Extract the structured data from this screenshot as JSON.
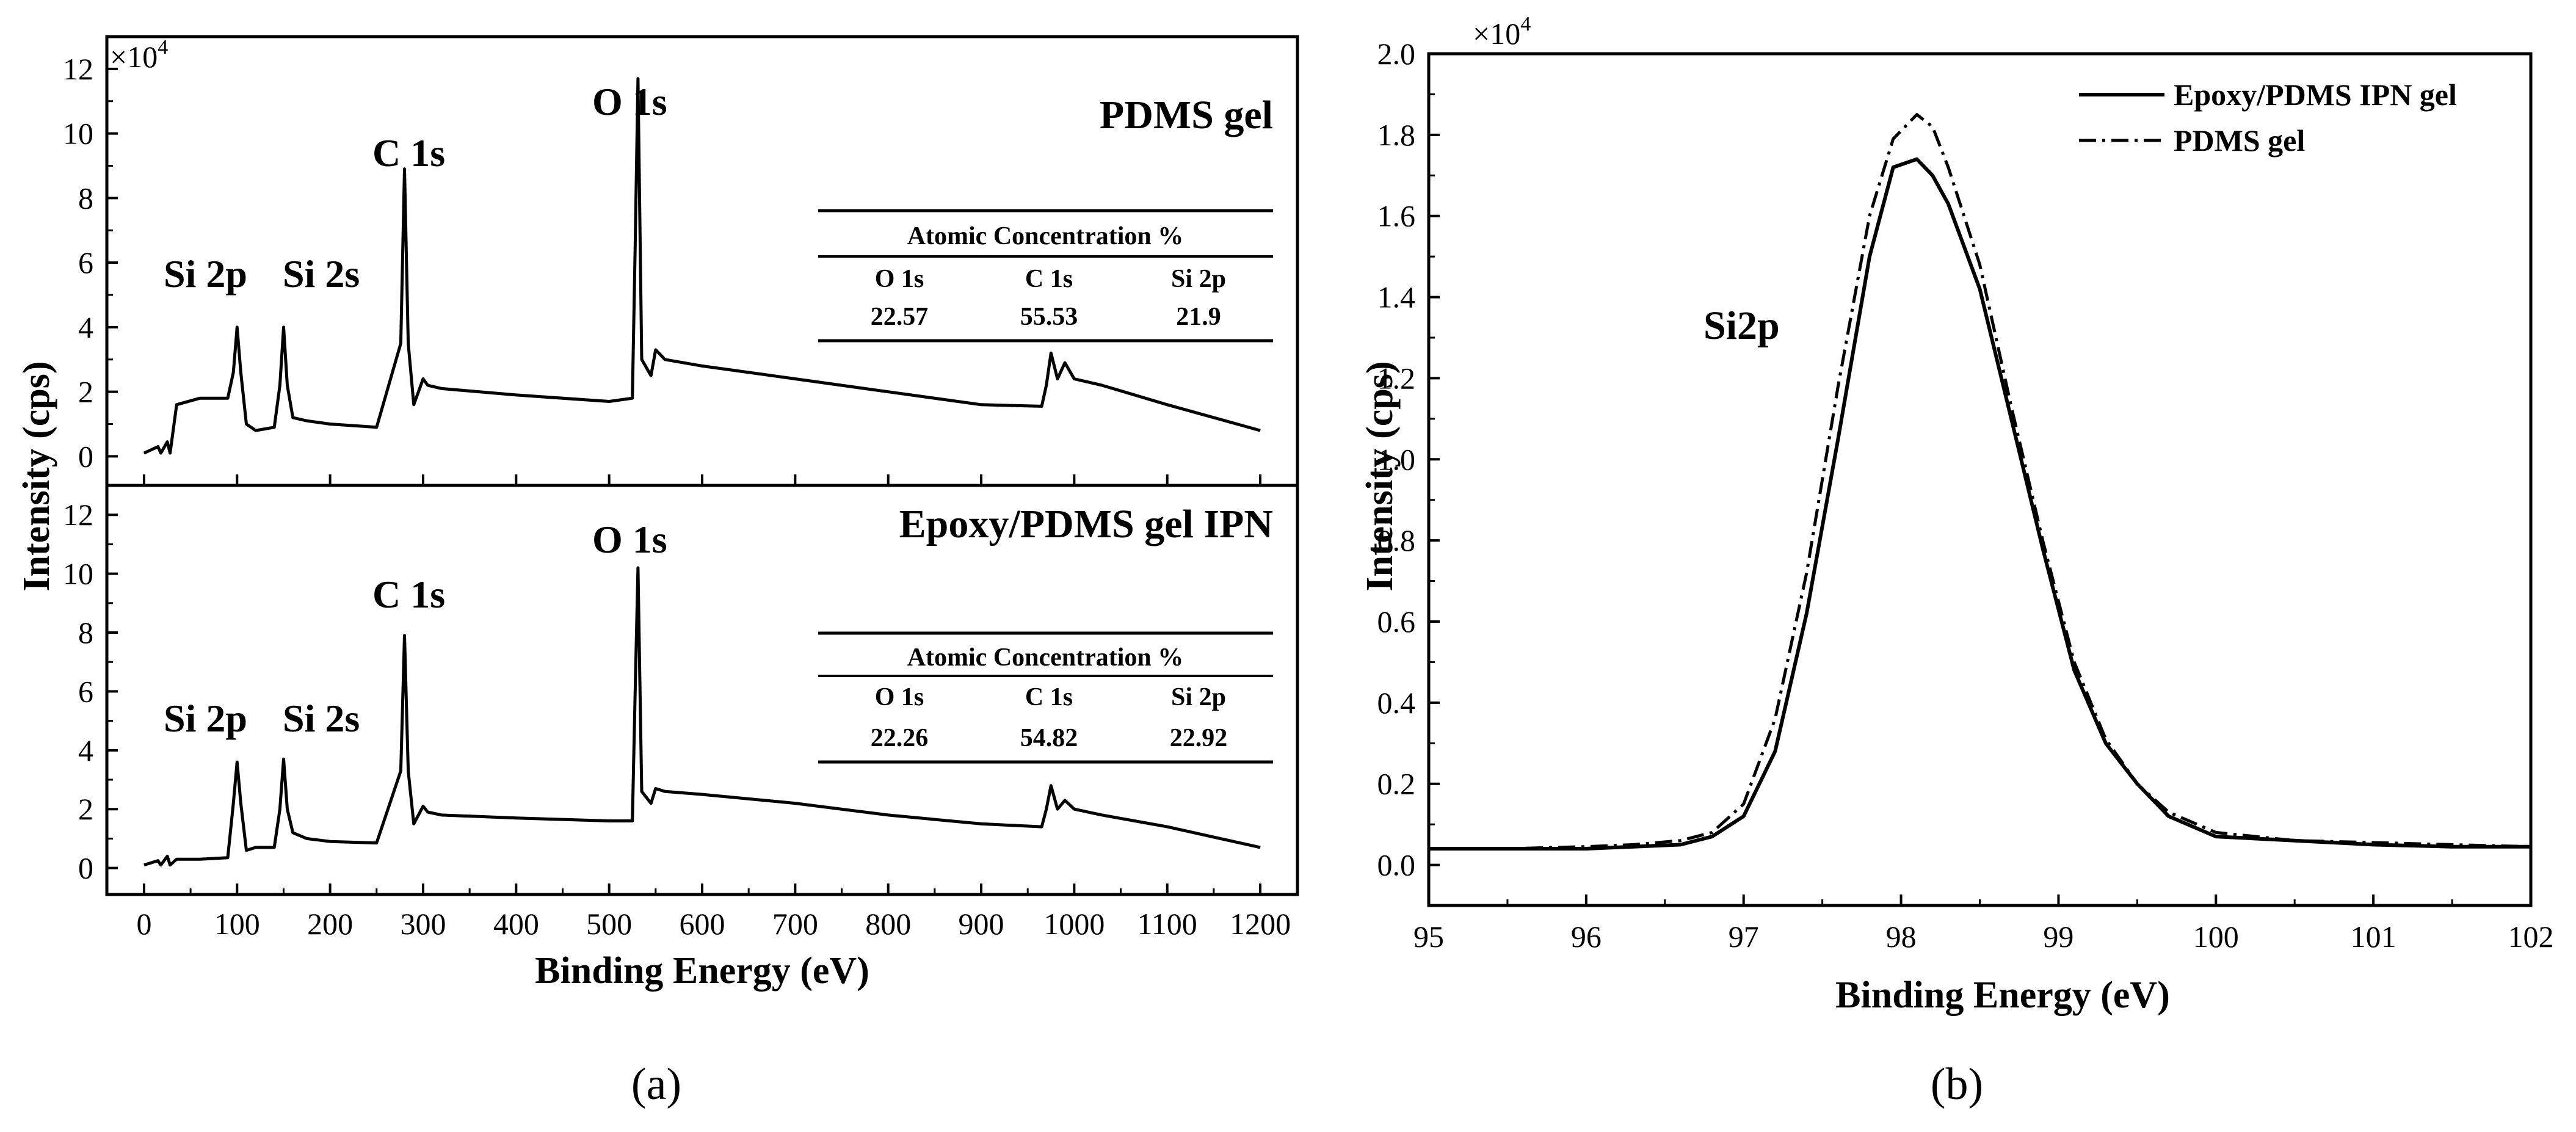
{
  "chart_data": [
    {
      "id": "a",
      "type": "line",
      "caption": "(a)",
      "multiplier": "×10",
      "multiplier_exp": "4",
      "xlabel": "Binding Energy (eV)",
      "ylabel": "Intensity (cps)",
      "xlim": [
        -40,
        1240
      ],
      "xticks": [
        0,
        100,
        200,
        300,
        400,
        500,
        600,
        700,
        800,
        900,
        1000,
        1100,
        1200
      ],
      "xtick_labels": [
        "0",
        "100",
        "200",
        "300",
        "400",
        "500",
        "600",
        "700",
        "800",
        "900",
        "1000",
        "1100",
        "1200"
      ],
      "panels": [
        {
          "name": "PDMS gel",
          "title": "PDMS gel",
          "ylim": [
            -0.9,
            13
          ],
          "yticks": [
            0,
            2,
            4,
            6,
            8,
            10,
            12
          ],
          "ytick_labels": [
            "0",
            "2",
            "4",
            "6",
            "8",
            "10",
            "12"
          ],
          "peak_labels": [
            "Si 2p",
            "Si 2s",
            "C 1s",
            "O 1s"
          ],
          "table": {
            "title": "Atomic Concentration %",
            "headers": [
              "O 1s",
              "C 1s",
              "Si 2p"
            ],
            "values": [
              "22.57",
              "55.53",
              "21.9"
            ]
          },
          "x": [
            0,
            15,
            18,
            25,
            28,
            35,
            60,
            90,
            96,
            100,
            104,
            110,
            120,
            140,
            146,
            150,
            154,
            160,
            175,
            200,
            250,
            276,
            280,
            284,
            290,
            300,
            305,
            320,
            400,
            500,
            525,
            528,
            531,
            535,
            545,
            550,
            560,
            600,
            700,
            800,
            900,
            965,
            970,
            975,
            982,
            990,
            1000,
            1030,
            1100,
            1200
          ],
          "y": [
            0.1,
            0.3,
            0.1,
            0.45,
            0.1,
            1.6,
            1.8,
            1.8,
            2.6,
            4.0,
            2.6,
            1.0,
            0.8,
            0.9,
            2.2,
            4.0,
            2.2,
            1.2,
            1.1,
            1.0,
            0.9,
            3.5,
            8.9,
            3.5,
            1.6,
            2.4,
            2.2,
            2.1,
            1.9,
            1.7,
            1.8,
            6.5,
            11.7,
            3.0,
            2.5,
            3.3,
            3.0,
            2.8,
            2.4,
            2.0,
            1.6,
            1.55,
            2.2,
            3.2,
            2.4,
            2.9,
            2.4,
            2.2,
            1.6,
            0.8
          ]
        },
        {
          "name": "Epoxy/PDMS gel IPN",
          "title": "Epoxy/PDMS gel IPN",
          "ylim": [
            -0.9,
            13
          ],
          "yticks": [
            0,
            2,
            4,
            6,
            8,
            10,
            12
          ],
          "ytick_labels": [
            "0",
            "2",
            "4",
            "6",
            "8",
            "10",
            "12"
          ],
          "peak_labels": [
            "Si 2p",
            "Si 2s",
            "C 1s",
            "O 1s"
          ],
          "table": {
            "title": "Atomic Concentration %",
            "headers": [
              "O 1s",
              "C 1s",
              "Si 2p"
            ],
            "values": [
              "22.26",
              "54.82",
              "22.92"
            ]
          },
          "x": [
            0,
            15,
            18,
            25,
            28,
            35,
            60,
            90,
            96,
            100,
            104,
            110,
            120,
            140,
            146,
            150,
            154,
            160,
            175,
            200,
            250,
            276,
            280,
            284,
            290,
            300,
            305,
            320,
            400,
            500,
            525,
            528,
            531,
            535,
            545,
            550,
            560,
            600,
            700,
            800,
            900,
            965,
            970,
            975,
            982,
            990,
            1000,
            1030,
            1100,
            1200
          ],
          "y": [
            0.1,
            0.25,
            0.1,
            0.4,
            0.1,
            0.3,
            0.3,
            0.35,
            2.2,
            3.6,
            2.2,
            0.6,
            0.7,
            0.7,
            2.0,
            3.7,
            2.0,
            1.2,
            1.0,
            0.9,
            0.85,
            3.3,
            7.9,
            3.3,
            1.5,
            2.1,
            1.9,
            1.8,
            1.7,
            1.6,
            1.6,
            6.0,
            10.2,
            2.6,
            2.2,
            2.7,
            2.6,
            2.5,
            2.2,
            1.8,
            1.5,
            1.4,
            2.0,
            2.8,
            2.0,
            2.3,
            2.0,
            1.8,
            1.4,
            0.7
          ]
        }
      ]
    },
    {
      "id": "b",
      "type": "line",
      "caption": "(b)",
      "multiplier": "×10",
      "multiplier_exp": "4",
      "xlabel": "Binding Energy (eV)",
      "ylabel": "Intensity (cps)",
      "annotation": "Si2p",
      "xlim": [
        95,
        102
      ],
      "ylim": [
        -0.1,
        2.0
      ],
      "xticks": [
        95,
        96,
        97,
        98,
        99,
        100,
        101,
        102
      ],
      "xtick_labels": [
        "95",
        "96",
        "97",
        "98",
        "99",
        "100",
        "101",
        "102"
      ],
      "yticks": [
        0.0,
        0.2,
        0.4,
        0.6,
        0.8,
        1.0,
        1.2,
        1.4,
        1.6,
        1.8,
        2.0
      ],
      "ytick_labels": [
        "0.0",
        "0.2",
        "0.4",
        "0.6",
        "0.8",
        "1.0",
        "1.2",
        "1.4",
        "1.6",
        "1.8",
        "2.0"
      ],
      "series": [
        {
          "name": "Epoxy/PDMS IPN gel",
          "style": "solid",
          "x": [
            95,
            95.5,
            96,
            96.3,
            96.6,
            96.8,
            97.0,
            97.2,
            97.4,
            97.6,
            97.8,
            97.95,
            98.1,
            98.2,
            98.3,
            98.5,
            98.7,
            98.9,
            99.1,
            99.3,
            99.5,
            99.7,
            100.0,
            100.5,
            101,
            101.5,
            102
          ],
          "y": [
            0.04,
            0.04,
            0.04,
            0.045,
            0.05,
            0.07,
            0.12,
            0.28,
            0.62,
            1.05,
            1.5,
            1.72,
            1.74,
            1.7,
            1.63,
            1.42,
            1.1,
            0.78,
            0.48,
            0.3,
            0.2,
            0.12,
            0.07,
            0.06,
            0.05,
            0.045,
            0.045
          ]
        },
        {
          "name": "PDMS gel",
          "style": "dashdot",
          "x": [
            95,
            95.5,
            96,
            96.3,
            96.6,
            96.8,
            97.0,
            97.2,
            97.4,
            97.6,
            97.8,
            97.95,
            98.1,
            98.2,
            98.3,
            98.5,
            98.7,
            98.9,
            99.1,
            99.3,
            99.5,
            99.7,
            100.0,
            100.5,
            101,
            101.5,
            102
          ],
          "y": [
            0.04,
            0.04,
            0.045,
            0.05,
            0.06,
            0.08,
            0.15,
            0.36,
            0.72,
            1.18,
            1.6,
            1.79,
            1.85,
            1.82,
            1.72,
            1.48,
            1.13,
            0.8,
            0.5,
            0.31,
            0.2,
            0.13,
            0.08,
            0.06,
            0.055,
            0.05,
            0.045
          ]
        }
      ]
    }
  ]
}
